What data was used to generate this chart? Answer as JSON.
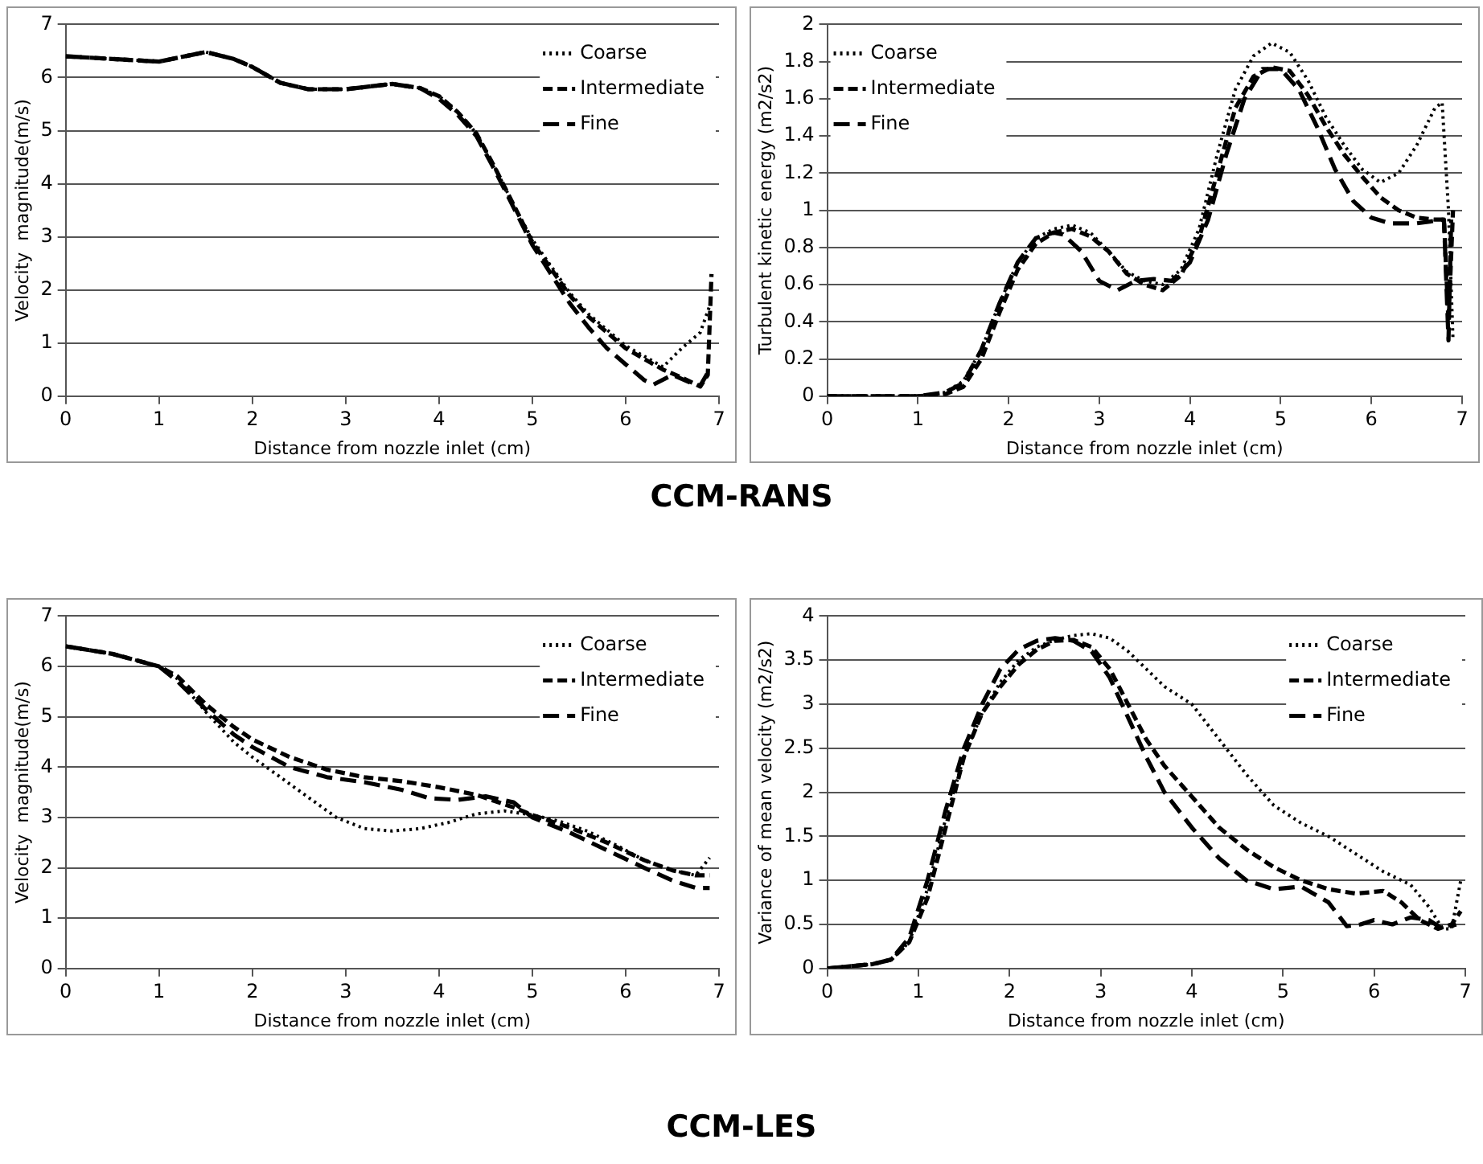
{
  "chart_data": [
    {
      "type": "line",
      "xlabel": "Distance from nozzle inlet (cm)",
      "ylabel": "Velocity  magnitude(m/s)",
      "xlim": [
        0,
        7
      ],
      "xticks": [
        0,
        1,
        2,
        3,
        4,
        5,
        6,
        7
      ],
      "ylim": [
        0,
        7
      ],
      "yticks": [
        0,
        1,
        2,
        3,
        4,
        5,
        6,
        7
      ],
      "grid": "y",
      "legend": "top right",
      "annotations": [
        "CCM-RANS"
      ],
      "series": [
        {
          "name": "Coarse",
          "color": "#000000",
          "line_style": "dotted",
          "x": [
            0,
            0.5,
            1,
            1.5,
            1.8,
            2,
            2.3,
            2.6,
            3,
            3.5,
            3.8,
            4,
            4.2,
            4.4,
            4.6,
            4.8,
            5,
            5.2,
            5.4,
            5.6,
            5.8,
            6,
            6.2,
            6.4,
            6.6,
            6.8,
            6.9
          ],
          "values": [
            6.4,
            6.35,
            6.3,
            6.48,
            6.35,
            6.2,
            5.9,
            5.78,
            5.78,
            5.88,
            5.8,
            5.65,
            5.35,
            4.95,
            4.3,
            3.6,
            2.95,
            2.45,
            1.95,
            1.55,
            1.25,
            0.95,
            0.75,
            0.55,
            0.9,
            1.2,
            1.7
          ]
        },
        {
          "name": "Intermediate",
          "color": "#000000",
          "line_style": "dashed",
          "x": [
            0,
            0.5,
            1,
            1.5,
            1.8,
            2,
            2.3,
            2.6,
            3,
            3.5,
            3.8,
            4,
            4.2,
            4.4,
            4.6,
            4.8,
            5,
            5.2,
            5.4,
            5.6,
            5.8,
            6,
            6.2,
            6.4,
            6.6,
            6.8,
            6.88,
            6.92
          ],
          "values": [
            6.4,
            6.35,
            6.3,
            6.48,
            6.35,
            6.2,
            5.9,
            5.78,
            5.78,
            5.88,
            5.8,
            5.65,
            5.35,
            4.95,
            4.3,
            3.6,
            2.9,
            2.4,
            1.9,
            1.5,
            1.2,
            0.9,
            0.7,
            0.5,
            0.35,
            0.18,
            0.4,
            2.3
          ]
        },
        {
          "name": "Fine",
          "color": "#000000",
          "line_style": "dashed",
          "x": [
            0,
            0.5,
            1,
            1.5,
            1.8,
            2,
            2.3,
            2.6,
            3,
            3.5,
            3.8,
            4,
            4.2,
            4.4,
            4.6,
            4.8,
            5,
            5.2,
            5.4,
            5.6,
            5.8,
            6,
            6.2,
            6.3,
            6.5,
            6.7,
            6.8,
            6.9
          ],
          "values": [
            6.4,
            6.35,
            6.3,
            6.48,
            6.35,
            6.2,
            5.9,
            5.78,
            5.78,
            5.88,
            5.8,
            5.6,
            5.3,
            4.9,
            4.25,
            3.55,
            2.85,
            2.3,
            1.75,
            1.3,
            0.9,
            0.6,
            0.3,
            0.22,
            0.4,
            0.25,
            0.2,
            0.5
          ]
        }
      ]
    },
    {
      "type": "line",
      "xlabel": "Distance from nozzle inlet (cm)",
      "ylabel": "Turbulent kinetic energy (m2/s2)",
      "xlim": [
        0,
        7
      ],
      "xticks": [
        0,
        1,
        2,
        3,
        4,
        5,
        6,
        7
      ],
      "ylim": [
        0,
        2
      ],
      "yticks": [
        0,
        0.2,
        0.4,
        0.6,
        0.8,
        1,
        1.2,
        1.4,
        1.6,
        1.8,
        2
      ],
      "grid": "y",
      "legend": "top left",
      "series": [
        {
          "name": "Coarse",
          "color": "#000000",
          "line_style": "dotted",
          "x": [
            0,
            1,
            1.3,
            1.5,
            1.7,
            1.9,
            2.1,
            2.3,
            2.5,
            2.7,
            2.9,
            3.1,
            3.3,
            3.5,
            3.7,
            3.9,
            4.1,
            4.3,
            4.5,
            4.7,
            4.9,
            5.1,
            5.3,
            5.5,
            5.7,
            5.9,
            6.1,
            6.3,
            6.5,
            6.7,
            6.78,
            6.85,
            6.9
          ],
          "values": [
            0,
            0,
            0.02,
            0.08,
            0.25,
            0.5,
            0.72,
            0.85,
            0.9,
            0.92,
            0.88,
            0.78,
            0.67,
            0.62,
            0.6,
            0.68,
            0.9,
            1.3,
            1.65,
            1.83,
            1.9,
            1.85,
            1.7,
            1.5,
            1.35,
            1.22,
            1.15,
            1.2,
            1.35,
            1.55,
            1.58,
            1,
            0.3
          ]
        },
        {
          "name": "Intermediate",
          "color": "#000000",
          "line_style": "dashed",
          "x": [
            0,
            1,
            1.3,
            1.5,
            1.7,
            1.9,
            2.1,
            2.3,
            2.5,
            2.7,
            2.9,
            3.1,
            3.3,
            3.5,
            3.7,
            3.9,
            4.1,
            4.3,
            4.5,
            4.7,
            4.9,
            5.1,
            5.3,
            5.5,
            5.7,
            5.9,
            6.1,
            6.3,
            6.5,
            6.7,
            6.8,
            6.85,
            6.9
          ],
          "values": [
            0,
            0,
            0.01,
            0.05,
            0.2,
            0.45,
            0.68,
            0.82,
            0.88,
            0.9,
            0.86,
            0.78,
            0.66,
            0.6,
            0.57,
            0.65,
            0.85,
            1.2,
            1.55,
            1.72,
            1.77,
            1.75,
            1.62,
            1.45,
            1.3,
            1.18,
            1.07,
            1,
            0.96,
            0.95,
            0.95,
            0.4,
            1
          ]
        },
        {
          "name": "Fine",
          "color": "#000000",
          "line_style": "dashed",
          "x": [
            0,
            1,
            1.3,
            1.5,
            1.7,
            1.9,
            2.1,
            2.3,
            2.5,
            2.6,
            2.8,
            3,
            3.2,
            3.4,
            3.6,
            3.8,
            4,
            4.2,
            4.4,
            4.6,
            4.8,
            5,
            5.2,
            5.4,
            5.6,
            5.8,
            6,
            6.2,
            6.5,
            6.8,
            6.85,
            6.88
          ],
          "values": [
            0,
            0,
            0.02,
            0.07,
            0.25,
            0.5,
            0.72,
            0.85,
            0.88,
            0.87,
            0.78,
            0.62,
            0.57,
            0.62,
            0.63,
            0.62,
            0.72,
            0.95,
            1.3,
            1.6,
            1.76,
            1.76,
            1.65,
            1.45,
            1.22,
            1.05,
            0.96,
            0.93,
            0.93,
            0.95,
            0.3,
            0.95
          ]
        }
      ]
    },
    {
      "type": "line",
      "xlabel": "Distance from nozzle inlet (cm)",
      "ylabel": "Velocity  magnitude(m/s)",
      "xlim": [
        0,
        7
      ],
      "xticks": [
        0,
        1,
        2,
        3,
        4,
        5,
        6,
        7
      ],
      "ylim": [
        0,
        7
      ],
      "yticks": [
        0,
        1,
        2,
        3,
        4,
        5,
        6,
        7
      ],
      "grid": "y",
      "legend": "top right",
      "annotations": [
        "CCM-LES"
      ],
      "series": [
        {
          "name": "Coarse",
          "color": "#000000",
          "line_style": "dotted",
          "x": [
            0,
            0.5,
            1,
            1.2,
            1.5,
            1.8,
            2,
            2.3,
            2.6,
            2.9,
            3.2,
            3.5,
            3.8,
            4.1,
            4.4,
            4.7,
            5,
            5.3,
            5.6,
            5.9,
            6.2,
            6.5,
            6.75,
            6.9
          ],
          "values": [
            6.4,
            6.25,
            6,
            5.75,
            5.1,
            4.5,
            4.2,
            3.8,
            3.4,
            3,
            2.78,
            2.73,
            2.78,
            2.9,
            3.07,
            3.13,
            3.05,
            2.92,
            2.72,
            2.45,
            2.15,
            1.95,
            1.85,
            2.2
          ]
        },
        {
          "name": "Intermediate",
          "color": "#000000",
          "line_style": "dashed",
          "x": [
            0,
            0.5,
            1,
            1.2,
            1.5,
            1.8,
            2,
            2.4,
            2.8,
            3.2,
            3.6,
            4,
            4.4,
            4.8,
            5,
            5.4,
            5.8,
            6.2,
            6.5,
            6.75,
            6.9
          ],
          "values": [
            6.4,
            6.25,
            6,
            5.8,
            5.25,
            4.8,
            4.55,
            4.2,
            3.95,
            3.8,
            3.72,
            3.6,
            3.45,
            3.2,
            3.05,
            2.8,
            2.5,
            2.15,
            1.95,
            1.85,
            1.85
          ]
        },
        {
          "name": "Fine",
          "color": "#000000",
          "line_style": "dashed",
          "x": [
            0,
            0.5,
            1,
            1.2,
            1.5,
            1.8,
            2,
            2.4,
            2.8,
            3.2,
            3.6,
            3.9,
            4.2,
            4.5,
            4.8,
            5,
            5.4,
            5.8,
            6.2,
            6.5,
            6.75,
            6.9
          ],
          "values": [
            6.4,
            6.25,
            6,
            5.7,
            5.15,
            4.65,
            4.4,
            4,
            3.8,
            3.7,
            3.55,
            3.38,
            3.35,
            3.42,
            3.3,
            3,
            2.7,
            2.35,
            2,
            1.75,
            1.6,
            1.6
          ]
        }
      ]
    },
    {
      "type": "line",
      "xlabel": "Distance from nozzle inlet (cm)",
      "ylabel": "Variance of mean velocity (m2/s2)",
      "xlim": [
        0,
        7
      ],
      "xticks": [
        0,
        1,
        2,
        3,
        4,
        5,
        6,
        7
      ],
      "ylim": [
        0,
        4
      ],
      "yticks": [
        0,
        0.5,
        1,
        1.5,
        2,
        2.5,
        3,
        3.5,
        4
      ],
      "grid": "y",
      "legend": "top right",
      "series": [
        {
          "name": "Coarse",
          "color": "#000000",
          "line_style": "dotted",
          "x": [
            0,
            0.5,
            0.7,
            0.9,
            1.1,
            1.3,
            1.5,
            1.7,
            1.9,
            2.1,
            2.3,
            2.5,
            2.7,
            2.9,
            3.1,
            3.3,
            3.5,
            3.7,
            4,
            4.3,
            4.6,
            4.9,
            5.2,
            5.5,
            5.8,
            6.1,
            6.4,
            6.6,
            6.75,
            6.85,
            6.95
          ],
          "values": [
            0,
            0.05,
            0.1,
            0.3,
            0.9,
            1.7,
            2.4,
            2.9,
            3.25,
            3.5,
            3.65,
            3.73,
            3.78,
            3.8,
            3.75,
            3.6,
            3.4,
            3.2,
            3,
            2.6,
            2.2,
            1.85,
            1.65,
            1.5,
            1.3,
            1.1,
            0.95,
            0.7,
            0.45,
            0.45,
            1
          ]
        },
        {
          "name": "Intermediate",
          "color": "#000000",
          "line_style": "dashed",
          "x": [
            0,
            0.5,
            0.7,
            0.9,
            1.1,
            1.3,
            1.5,
            1.7,
            1.9,
            2.1,
            2.3,
            2.5,
            2.7,
            2.9,
            3.1,
            3.3,
            3.5,
            3.7,
            4,
            4.3,
            4.6,
            4.9,
            5.2,
            5.5,
            5.8,
            6.1,
            6.3,
            6.5,
            6.7,
            6.85,
            6.95
          ],
          "values": [
            0,
            0.05,
            0.1,
            0.3,
            0.8,
            1.6,
            2.4,
            2.9,
            3.2,
            3.45,
            3.62,
            3.72,
            3.73,
            3.65,
            3.4,
            3,
            2.6,
            2.3,
            1.95,
            1.6,
            1.35,
            1.15,
            1,
            0.9,
            0.85,
            0.88,
            0.75,
            0.55,
            0.45,
            0.5,
            0.65
          ]
        },
        {
          "name": "Fine",
          "color": "#000000",
          "line_style": "dashed",
          "x": [
            0,
            0.5,
            0.7,
            0.9,
            1.1,
            1.3,
            1.5,
            1.7,
            1.9,
            2.1,
            2.3,
            2.5,
            2.7,
            2.9,
            3.1,
            3.3,
            3.5,
            3.7,
            4,
            4.3,
            4.6,
            4.9,
            5.2,
            5.5,
            5.7,
            5.85,
            6,
            6.2,
            6.4,
            6.6,
            6.75,
            6.9
          ],
          "values": [
            0,
            0.05,
            0.1,
            0.35,
            1,
            1.8,
            2.5,
            3,
            3.4,
            3.62,
            3.72,
            3.75,
            3.72,
            3.6,
            3.3,
            2.85,
            2.4,
            2,
            1.6,
            1.25,
            1,
            0.9,
            0.93,
            0.75,
            0.48,
            0.5,
            0.55,
            0.5,
            0.58,
            0.55,
            0.45,
            0.5
          ]
        }
      ]
    }
  ]
}
